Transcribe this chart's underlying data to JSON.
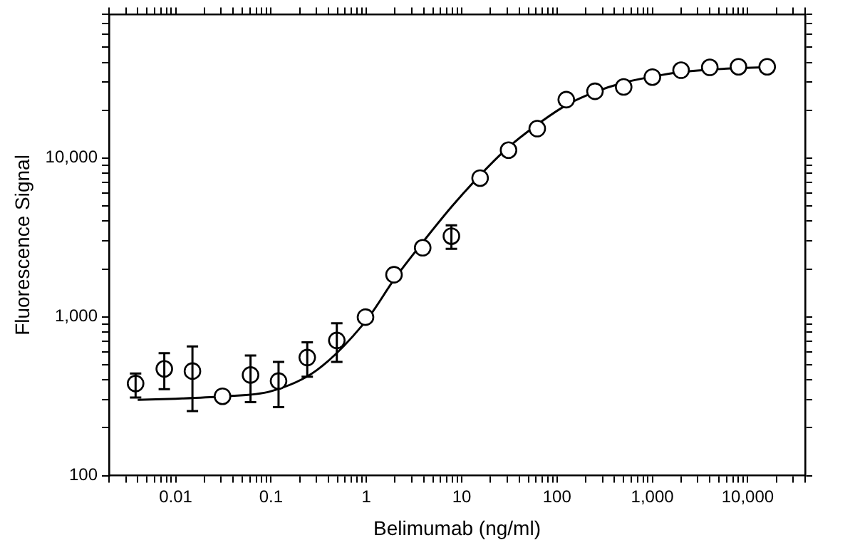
{
  "chart_data": {
    "type": "scatter",
    "xlabel": "Belimumab (ng/ml)",
    "ylabel": "Fluorescence Signal",
    "log": "xy",
    "grid": false,
    "legend": false,
    "xlim": [
      0.002,
      40000
    ],
    "xticks": [
      {
        "value": 0.002,
        "label": null
      },
      {
        "value": 0.003,
        "label": null
      },
      {
        "value": 0.004,
        "label": null
      },
      {
        "value": 0.005,
        "label": null
      },
      {
        "value": 0.006,
        "label": null
      },
      {
        "value": 0.007,
        "label": null
      },
      {
        "value": 0.008,
        "label": null
      },
      {
        "value": 0.009,
        "label": null
      },
      0.01,
      {
        "value": 0.02,
        "label": null
      },
      {
        "value": 0.03,
        "label": null
      },
      {
        "value": 0.04,
        "label": null
      },
      {
        "value": 0.05,
        "label": null
      },
      {
        "value": 0.06,
        "label": null
      },
      {
        "value": 0.07,
        "label": null
      },
      {
        "value": 0.08,
        "label": null
      },
      {
        "value": 0.09,
        "label": null
      },
      0.1,
      {
        "value": 0.2,
        "label": null
      },
      {
        "value": 0.3,
        "label": null
      },
      {
        "value": 0.4,
        "label": null
      },
      {
        "value": 0.5,
        "label": null
      },
      {
        "value": 0.6,
        "label": null
      },
      {
        "value": 0.7,
        "label": null
      },
      {
        "value": 0.8,
        "label": null
      },
      {
        "value": 0.9,
        "label": null
      },
      1,
      {
        "value": 2,
        "label": null
      },
      {
        "value": 3,
        "label": null
      },
      {
        "value": 4,
        "label": null
      },
      {
        "value": 5,
        "label": null
      },
      {
        "value": 6,
        "label": null
      },
      {
        "value": 7,
        "label": null
      },
      {
        "value": 8,
        "label": null
      },
      {
        "value": 9,
        "label": null
      },
      10,
      {
        "value": 20,
        "label": null
      },
      {
        "value": 30,
        "label": null
      },
      {
        "value": 40,
        "label": null
      },
      {
        "value": 50,
        "label": null
      },
      {
        "value": 60,
        "label": null
      },
      {
        "value": 70,
        "label": null
      },
      {
        "value": 80,
        "label": null
      },
      {
        "value": 90,
        "label": null
      },
      100,
      {
        "value": 200,
        "label": null
      },
      {
        "value": 300,
        "label": null
      },
      {
        "value": 400,
        "label": null
      },
      {
        "value": 500,
        "label": null
      },
      {
        "value": 600,
        "label": null
      },
      {
        "value": 700,
        "label": null
      },
      {
        "value": 800,
        "label": null
      },
      {
        "value": 900,
        "label": null
      },
      {
        "value": 1000,
        "label": "1,000"
      },
      {
        "value": 2000,
        "label": null
      },
      {
        "value": 3000,
        "label": null
      },
      {
        "value": 4000,
        "label": null
      },
      {
        "value": 5000,
        "label": null
      },
      {
        "value": 6000,
        "label": null
      },
      {
        "value": 7000,
        "label": null
      },
      {
        "value": 8000,
        "label": null
      },
      {
        "value": 9000,
        "label": null
      },
      {
        "value": 10000,
        "label": "10,000"
      },
      {
        "value": 20000,
        "label": null
      },
      {
        "value": 30000,
        "label": null
      },
      {
        "value": 40000,
        "label": null
      }
    ],
    "ylim": [
      100,
      80000
    ],
    "yticks": [
      100,
      {
        "value": 200,
        "label": null
      },
      {
        "value": 300,
        "label": null
      },
      {
        "value": 400,
        "label": null
      },
      {
        "value": 500,
        "label": null
      },
      {
        "value": 600,
        "label": null
      },
      {
        "value": 700,
        "label": null
      },
      {
        "value": 800,
        "label": null
      },
      {
        "value": 900,
        "label": null
      },
      {
        "value": 1000,
        "label": "1,000"
      },
      {
        "value": 2000,
        "label": null
      },
      {
        "value": 3000,
        "label": null
      },
      {
        "value": 4000,
        "label": null
      },
      {
        "value": 5000,
        "label": null
      },
      {
        "value": 6000,
        "label": null
      },
      {
        "value": 7000,
        "label": null
      },
      {
        "value": 8000,
        "label": null
      },
      {
        "value": 9000,
        "label": null
      },
      {
        "value": 10000,
        "label": "10,000"
      },
      {
        "value": 20000,
        "label": null
      },
      {
        "value": 30000,
        "label": null
      },
      {
        "value": 40000,
        "label": null
      },
      {
        "value": 50000,
        "label": null
      },
      {
        "value": 60000,
        "label": null
      },
      {
        "value": 70000,
        "label": null
      },
      {
        "value": 80000,
        "label": null
      }
    ],
    "series": [
      {
        "color": "#000000",
        "marker": "circle",
        "x": [
          0.0038,
          0.0076,
          0.015,
          0.031,
          0.061,
          0.12,
          0.24,
          0.49,
          0.98,
          1.95,
          3.9,
          7.8,
          15.6,
          31,
          62,
          125,
          250,
          500,
          1000,
          2000,
          4000,
          8000,
          16000
        ],
        "values": [
          380,
          470,
          455,
          316,
          430,
          394,
          554,
          710,
          995,
          1840,
          2720,
          3220,
          7470,
          11200,
          15300,
          23300,
          26300,
          28000,
          32300,
          35700,
          37200,
          37500,
          37500
        ],
        "errors": [
          [
            310,
            440
          ],
          [
            350,
            590
          ],
          [
            255,
            650
          ],
          null,
          [
            290,
            570
          ],
          [
            270,
            520
          ],
          [
            420,
            690
          ],
          [
            520,
            910
          ],
          null,
          null,
          null,
          [
            2680,
            3770
          ],
          null,
          null,
          null,
          null,
          null,
          null,
          null,
          null,
          null,
          null,
          null
        ]
      },
      {
        "type": "line",
        "color": "#000000",
        "marker": "none",
        "line_style": "solid",
        "x": [
          0.004,
          0.01,
          0.03,
          0.1,
          0.3,
          1,
          2,
          4,
          8,
          15,
          30,
          60,
          125,
          250,
          500,
          1000,
          2000,
          4000,
          8000,
          16000
        ],
        "values": [
          300,
          305,
          315,
          340,
          460,
          950,
          1750,
          3000,
          5000,
          7600,
          11500,
          16000,
          21500,
          26000,
          29800,
          32500,
          34800,
          36000,
          36800,
          37300
        ]
      }
    ]
  }
}
